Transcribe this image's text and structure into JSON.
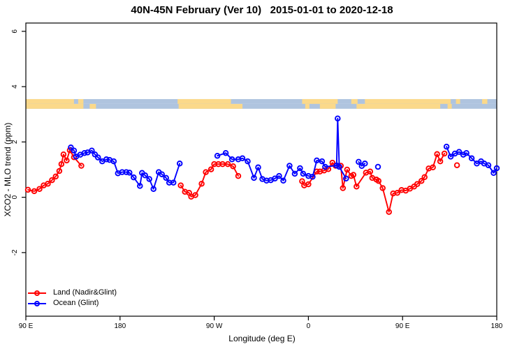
{
  "title": "40N-45N February (Ver 10)   2015-01-01 to 2020-12-18",
  "axes": {
    "x_label": "Longitude (deg E)",
    "y_label": "XCO2 - MLO trend (ppm)",
    "x_ticks": [
      {
        "value": 90,
        "label": "90 E"
      },
      {
        "value": 180,
        "label": "180"
      },
      {
        "value": 270,
        "label": "90 W"
      },
      {
        "value": 360,
        "label": "0"
      },
      {
        "value": 450,
        "label": "90 E"
      },
      {
        "value": 540,
        "label": "180"
      }
    ],
    "y_ticks": [
      {
        "value": -2,
        "label": "-2"
      },
      {
        "value": 0,
        "label": "0"
      },
      {
        "value": 2,
        "label": "2"
      },
      {
        "value": 4,
        "label": "4"
      },
      {
        "value": 6,
        "label": "6"
      }
    ]
  },
  "legend": {
    "items": [
      {
        "label": "Land (Nadir&Glint)",
        "color": "#ff0000"
      },
      {
        "label": "Ocean (Glint)",
        "color": "#0000ff"
      }
    ]
  },
  "map_strip": {
    "description": "land/ocean strip map of the 40N-45N band drawn across the top of the plot",
    "land_color": "#fbd98a",
    "ocean_color": "#afc4df",
    "value_range": [
      3.2,
      3.55
    ],
    "rows": [
      {
        "land_segments": [
          [
            90,
            136
          ],
          [
            140,
            145
          ],
          [
            235,
            286
          ],
          [
            354,
            388
          ],
          [
            401,
            407
          ],
          [
            414,
            496
          ],
          [
            501,
            505
          ],
          [
            526,
            531
          ]
        ]
      },
      {
        "land_segments": [
          [
            90,
            145
          ],
          [
            151,
            157
          ],
          [
            236,
            297
          ],
          [
            357,
            361
          ],
          [
            371,
            386
          ],
          [
            406,
            486
          ],
          [
            493,
            497
          ]
        ]
      }
    ]
  },
  "chart_data": {
    "type": "line",
    "title": "40N-45N February (Ver 10)   2015-01-01 to 2020-12-18",
    "xlabel": "Longitude (deg E)",
    "ylabel": "XCO2 - MLO trend (ppm)",
    "xlim": [
      90,
      540
    ],
    "ylim": [
      -4.3,
      6.3
    ],
    "x_axis_note": "longitude axis wraps eastward from 90E through 180, 90W, 0, 90E to 180 (450 deg span)",
    "marker": "open-circle",
    "grid": false,
    "legend_position": "bottom-left",
    "series": [
      {
        "name": "Land (Nadir&Glint)",
        "color": "#ff0000",
        "segments": [
          [
            [
              92,
              0.27
            ],
            [
              98,
              0.22
            ],
            [
              103,
              0.3
            ],
            [
              107,
              0.43
            ],
            [
              111,
              0.49
            ],
            [
              115,
              0.62
            ],
            [
              118.5,
              0.75
            ],
            [
              122,
              0.95
            ],
            [
              124,
              1.2
            ],
            [
              126,
              1.55
            ],
            [
              129,
              1.33
            ],
            [
              132,
              1.7
            ],
            [
              136,
              1.45
            ],
            [
              143,
              1.14
            ]
          ],
          [
            [
              238,
              0.43
            ],
            [
              242,
              0.2
            ],
            [
              246,
              0.16
            ],
            [
              248,
              0.02
            ],
            [
              252,
              0.08
            ],
            [
              258,
              0.49
            ],
            [
              262,
              0.91
            ],
            [
              267,
              1.01
            ],
            [
              270,
              1.2
            ],
            [
              274,
              1.2
            ],
            [
              278,
              1.2
            ],
            [
              283,
              1.2
            ],
            [
              288,
              1.12
            ],
            [
              293,
              0.77
            ]
          ],
          [
            [
              354,
              0.58
            ],
            [
              356,
              0.43
            ],
            [
              360,
              0.47
            ],
            [
              368,
              0.93
            ],
            [
              371,
              0.93
            ],
            [
              375,
              0.97
            ],
            [
              379,
              1.02
            ],
            [
              383,
              1.25
            ],
            [
              386,
              1.14
            ],
            [
              391,
              1.14
            ],
            [
              393,
              0.33
            ],
            [
              397,
              1.0
            ],
            [
              401,
              0.77
            ],
            [
              403,
              0.81
            ],
            [
              406,
              0.39
            ],
            [
              415,
              0.89
            ],
            [
              419,
              0.93
            ],
            [
              421,
              0.7
            ],
            [
              425,
              0.64
            ],
            [
              427,
              0.59
            ],
            [
              431,
              0.33
            ],
            [
              437,
              -0.53
            ],
            [
              441,
              0.14
            ],
            [
              445,
              0.16
            ],
            [
              449,
              0.26
            ],
            [
              453,
              0.24
            ],
            [
              457,
              0.31
            ],
            [
              461,
              0.39
            ],
            [
              464,
              0.48
            ],
            [
              468,
              0.59
            ],
            [
              471,
              0.73
            ],
            [
              475,
              1.04
            ],
            [
              479,
              1.08
            ],
            [
              483,
              1.56
            ],
            [
              486,
              1.3
            ],
            [
              490,
              1.58
            ]
          ],
          [
            [
              502,
              1.16
            ]
          ]
        ]
      },
      {
        "name": "Ocean (Glint)",
        "color": "#0000ff",
        "segments": [
          [
            [
              133,
              1.8
            ],
            [
              136,
              1.69
            ],
            [
              138,
              1.47
            ],
            [
              142,
              1.54
            ],
            [
              146,
              1.6
            ],
            [
              149,
              1.62
            ],
            [
              153,
              1.69
            ],
            [
              156,
              1.55
            ],
            [
              159,
              1.44
            ],
            [
              163,
              1.3
            ],
            [
              167,
              1.37
            ],
            [
              170,
              1.35
            ],
            [
              174,
              1.3
            ],
            [
              178,
              0.87
            ],
            [
              182,
              0.91
            ],
            [
              186,
              0.91
            ],
            [
              189,
              0.89
            ],
            [
              193,
              0.72
            ],
            [
              199,
              0.41
            ],
            [
              201,
              0.88
            ],
            [
              204,
              0.79
            ],
            [
              208,
              0.66
            ],
            [
              212,
              0.3
            ],
            [
              217,
              0.91
            ],
            [
              220,
              0.83
            ],
            [
              224,
              0.7
            ],
            [
              227,
              0.53
            ],
            [
              231,
              0.53
            ],
            [
              237,
              1.22
            ]
          ],
          [
            [
              273,
              1.5
            ],
            [
              281,
              1.6
            ],
            [
              287,
              1.37
            ],
            [
              293,
              1.37
            ],
            [
              297,
              1.41
            ],
            [
              302,
              1.3
            ],
            [
              308,
              0.7
            ],
            [
              312,
              1.08
            ],
            [
              316,
              0.66
            ],
            [
              320,
              0.6
            ],
            [
              324,
              0.62
            ],
            [
              328,
              0.68
            ],
            [
              332,
              0.77
            ],
            [
              336,
              0.6
            ],
            [
              342,
              1.14
            ],
            [
              347,
              0.85
            ],
            [
              352,
              1.05
            ],
            [
              355,
              0.85
            ],
            [
              360,
              0.77
            ],
            [
              364,
              0.74
            ],
            [
              368,
              1.33
            ],
            [
              373,
              1.3
            ],
            [
              376,
              1.1
            ],
            [
              387,
              1.15
            ],
            [
              388,
              2.85
            ],
            [
              389.5,
              1.1
            ],
            [
              396,
              0.68
            ]
          ],
          [
            [
              408,
              1.28
            ],
            [
              411,
              1.13
            ],
            [
              414,
              1.22
            ]
          ],
          [
            [
              426.5,
              1.1
            ]
          ],
          [
            [
              492,
              1.83
            ],
            [
              496,
              1.47
            ],
            [
              500,
              1.58
            ],
            [
              504,
              1.64
            ],
            [
              508,
              1.54
            ],
            [
              511,
              1.6
            ],
            [
              516,
              1.41
            ],
            [
              521,
              1.22
            ],
            [
              525,
              1.3
            ],
            [
              528,
              1.22
            ],
            [
              532,
              1.16
            ],
            [
              537,
              0.88
            ],
            [
              540,
              1.05
            ]
          ]
        ]
      }
    ]
  }
}
